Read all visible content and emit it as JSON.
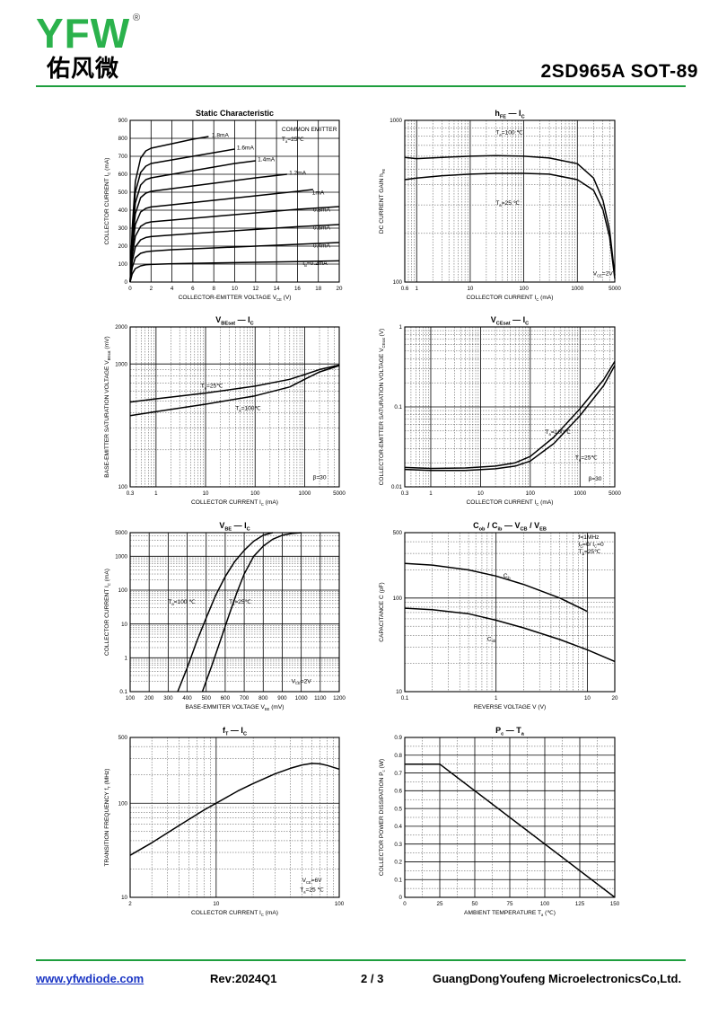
{
  "header": {
    "logo_letters": "YFW",
    "logo_chinese": "佑风微",
    "logo_registered": "®",
    "title": "2SD965A   SOT-89"
  },
  "footer": {
    "website": "www.yfwdiode.com",
    "revision": "Rev:2024Q1",
    "page": "2 / 3",
    "company": "GuangDongYoufeng MicroelectronicsCo,Ltd."
  },
  "colors": {
    "brand_green": "#2bb24c",
    "rule_green": "#1e9e3e",
    "link_blue": "#1a35c4"
  },
  "chart_data": [
    {
      "id": "static",
      "type": "line",
      "title": "Static Characteristic",
      "xlabel": "COLLECTOR-EMITTER VOLTAGE V_CE (V)",
      "ylabel": "COLLECTOR CURRENT I_C (mA)",
      "xscale": "linear",
      "yscale": "linear",
      "xlim": [
        0,
        20
      ],
      "ylim": [
        0,
        900
      ],
      "xticks": [
        0,
        2,
        4,
        6,
        8,
        10,
        12,
        14,
        16,
        18,
        20
      ],
      "yticks": [
        0,
        100,
        200,
        300,
        400,
        500,
        600,
        700,
        800,
        900
      ],
      "grid": "major",
      "annotations": [
        "COMMON EMITTER",
        "T_a=25℃"
      ],
      "series": [
        {
          "name": "1.8mA",
          "x": [
            0,
            0.2,
            0.5,
            1,
            1.5,
            2,
            4,
            6,
            7.5
          ],
          "y": [
            0,
            300,
            560,
            690,
            730,
            745,
            770,
            795,
            810
          ]
        },
        {
          "name": "1.6mA",
          "x": [
            0,
            0.2,
            0.5,
            1,
            1.5,
            2,
            4,
            6,
            8,
            10
          ],
          "y": [
            0,
            270,
            500,
            610,
            645,
            660,
            680,
            700,
            720,
            740
          ]
        },
        {
          "name": "1.4mA",
          "x": [
            0,
            0.2,
            0.5,
            1,
            1.5,
            2,
            4,
            6,
            8,
            10,
            12
          ],
          "y": [
            0,
            240,
            440,
            540,
            570,
            580,
            600,
            620,
            640,
            660,
            675
          ]
        },
        {
          "name": "1.2mA",
          "x": [
            0,
            0.2,
            0.5,
            1,
            1.5,
            2,
            4,
            8,
            12,
            15
          ],
          "y": [
            0,
            210,
            380,
            470,
            495,
            505,
            520,
            550,
            580,
            600
          ]
        },
        {
          "name": "1mA",
          "x": [
            0,
            0.2,
            0.5,
            1,
            1.5,
            2,
            4,
            8,
            12,
            16,
            17.5
          ],
          "y": [
            0,
            180,
            320,
            390,
            410,
            418,
            430,
            455,
            480,
            505,
            515
          ]
        },
        {
          "name": "0.8mA",
          "x": [
            0,
            0.2,
            0.5,
            1,
            1.5,
            2,
            4,
            8,
            12,
            16,
            20
          ],
          "y": [
            0,
            150,
            255,
            310,
            328,
            335,
            345,
            365,
            385,
            405,
            420
          ]
        },
        {
          "name": "0.6mA",
          "x": [
            0,
            0.2,
            0.5,
            1,
            1.5,
            2,
            4,
            8,
            12,
            16,
            20
          ],
          "y": [
            0,
            115,
            195,
            235,
            248,
            253,
            262,
            278,
            293,
            308,
            320
          ]
        },
        {
          "name": "0.4mA",
          "x": [
            0,
            0.2,
            0.5,
            1,
            1.5,
            2,
            4,
            8,
            12,
            16,
            20
          ],
          "y": [
            0,
            80,
            135,
            160,
            168,
            172,
            180,
            190,
            200,
            210,
            220
          ]
        },
        {
          "name": "I_B=0.2mA",
          "x": [
            0,
            0.2,
            0.5,
            1,
            1.5,
            2,
            4,
            8,
            12,
            16,
            20
          ],
          "y": [
            0,
            45,
            75,
            90,
            96,
            98,
            102,
            106,
            110,
            114,
            118
          ]
        }
      ]
    },
    {
      "id": "hfe",
      "type": "line",
      "title": "h_FE — I_C",
      "xlabel": "COLLECTOR CURRENT I_C (mA)",
      "ylabel": "DC CURRENT GAIN h_FE",
      "xscale": "log",
      "yscale": "log",
      "xlim": [
        0.6,
        5000
      ],
      "ylim": [
        100,
        1000
      ],
      "xticks": [
        0.6,
        1,
        10,
        100,
        1000,
        5000
      ],
      "yticks": [
        100,
        1000
      ],
      "grid": "log",
      "annotations": [
        "V_CE=2V"
      ],
      "series": [
        {
          "name": "T_a=100 ℃",
          "x": [
            0.6,
            1,
            3,
            10,
            30,
            100,
            300,
            1000,
            2000,
            3000,
            4000,
            5000
          ],
          "y": [
            590,
            580,
            590,
            600,
            605,
            600,
            585,
            540,
            440,
            320,
            210,
            110
          ]
        },
        {
          "name": "T_a=25 ℃",
          "x": [
            0.6,
            1,
            3,
            10,
            30,
            100,
            300,
            1000,
            2000,
            3000,
            4000,
            5000
          ],
          "y": [
            430,
            440,
            455,
            465,
            470,
            470,
            465,
            430,
            370,
            280,
            190,
            105
          ]
        }
      ]
    },
    {
      "id": "vbesat",
      "type": "line",
      "title": "V_BEsat — I_C",
      "xlabel": "COLLECTOR CURRENT I_C (mA)",
      "ylabel": "BASE-EMITTER SATURATION VOLTAGE V_BEsat (mV)",
      "xscale": "log",
      "yscale": "log",
      "xlim": [
        0.3,
        5000
      ],
      "ylim": [
        100,
        2000
      ],
      "xticks": [
        0.3,
        1,
        10,
        100,
        1000,
        5000
      ],
      "yticks": [
        100,
        1000,
        2000
      ],
      "grid": "log",
      "annotations": [
        "β=30"
      ],
      "series": [
        {
          "name": "T_a=25℃",
          "x": [
            0.3,
            1,
            10,
            100,
            500,
            1000,
            2000,
            5000
          ],
          "y": [
            490,
            520,
            580,
            660,
            750,
            820,
            900,
            980
          ]
        },
        {
          "name": "T_a=100℃",
          "x": [
            0.3,
            1,
            10,
            100,
            500,
            1000,
            2000,
            5000
          ],
          "y": [
            380,
            410,
            470,
            550,
            650,
            750,
            860,
            970
          ]
        }
      ]
    },
    {
      "id": "vcesat",
      "type": "line",
      "title": "V_CEsat — I_C",
      "xlabel": "COLLECTOR CURRENT I_C (mA)",
      "ylabel": "COLLECTOR-EMITTER SATURATION VOLTAGE V_CEsat (V)",
      "xscale": "log",
      "yscale": "log",
      "xlim": [
        0.3,
        5000
      ],
      "ylim": [
        0.01,
        1
      ],
      "xticks": [
        0.3,
        1,
        10,
        100,
        1000,
        5000
      ],
      "yticks": [
        0.01,
        0.1,
        1
      ],
      "grid": "log",
      "annotations": [
        "β=30"
      ],
      "series": [
        {
          "name": "T_a=100℃",
          "x": [
            0.3,
            1,
            5,
            20,
            50,
            100,
            300,
            1000,
            3000,
            5000
          ],
          "y": [
            0.0175,
            0.017,
            0.0172,
            0.0182,
            0.02,
            0.024,
            0.042,
            0.095,
            0.22,
            0.37
          ]
        },
        {
          "name": "T_a=25℃",
          "x": [
            0.3,
            1,
            5,
            20,
            50,
            100,
            300,
            1000,
            3000,
            5000
          ],
          "y": [
            0.0165,
            0.016,
            0.016,
            0.0168,
            0.0182,
            0.021,
            0.035,
            0.078,
            0.185,
            0.33
          ]
        }
      ]
    },
    {
      "id": "vbe",
      "type": "line",
      "title": "V_BE — I_C",
      "xlabel": "BASE-EMMITER VOLTAGE V_BE (mV)",
      "ylabel": "COLLECTOR CURRENT I_C (mA)",
      "xscale": "linear",
      "yscale": "log",
      "xlim": [
        100,
        1200
      ],
      "ylim": [
        0.1,
        5000
      ],
      "xticks": [
        100,
        200,
        300,
        400,
        500,
        600,
        700,
        800,
        900,
        1000,
        1100,
        1200
      ],
      "yticks": [
        0.1,
        1,
        10,
        100,
        1000,
        5000
      ],
      "grid": "log",
      "annotations": [
        "V_CE=2V"
      ],
      "series": [
        {
          "name": "T_a=100 ℃",
          "x": [
            350,
            400,
            450,
            500,
            550,
            600,
            650,
            700,
            750,
            800,
            850
          ],
          "y": [
            0.1,
            0.5,
            3,
            15,
            70,
            250,
            700,
            1500,
            2800,
            4200,
            5000
          ]
        },
        {
          "name": "T_a=25℃",
          "x": [
            480,
            530,
            580,
            620,
            660,
            700,
            750,
            800,
            850,
            900,
            950,
            1000
          ],
          "y": [
            0.1,
            0.6,
            4,
            18,
            80,
            300,
            1000,
            2000,
            3200,
            4200,
            4700,
            5000
          ]
        }
      ]
    },
    {
      "id": "cap",
      "type": "line",
      "title": "C_ob / C_ib — V_CB / V_EB",
      "xlabel": "REVERSE VOLTAGE V (V)",
      "ylabel": "CAPACITANCE C (pF)",
      "xscale": "log",
      "yscale": "log",
      "xlim": [
        0.1,
        20
      ],
      "ylim": [
        10,
        500
      ],
      "xticks": [
        0.1,
        1,
        10,
        20
      ],
      "yticks": [
        10,
        100,
        500
      ],
      "grid": "log",
      "annotations": [
        "f=1MHz",
        "I_E=0/ I_C=0",
        "T_a=25℃"
      ],
      "series": [
        {
          "name": "C_ib",
          "x": [
            0.1,
            0.2,
            0.5,
            1,
            2,
            5,
            10
          ],
          "y": [
            235,
            225,
            200,
            172,
            140,
            100,
            72
          ]
        },
        {
          "name": "C_ob",
          "x": [
            0.1,
            0.2,
            0.5,
            1,
            2,
            5,
            10,
            20
          ],
          "y": [
            78,
            75,
            68,
            58,
            48,
            36,
            28,
            21
          ]
        }
      ]
    },
    {
      "id": "ft",
      "type": "line",
      "title": "f_T — I_C",
      "xlabel": "COLLECTOR CURRENT I_C (mA)",
      "ylabel": "TRANSITION FREQUENCY f_T (MHz)",
      "xscale": "log",
      "yscale": "log",
      "xlim": [
        2,
        100
      ],
      "ylim": [
        10,
        500
      ],
      "xticks": [
        2,
        10,
        100
      ],
      "yticks": [
        10,
        100,
        500
      ],
      "grid": "log",
      "annotations": [
        "V_CE=6V",
        "T_a=25 ℃"
      ],
      "series": [
        {
          "name": "f_T",
          "x": [
            2,
            3,
            5,
            8,
            10,
            15,
            20,
            30,
            40,
            50,
            60,
            70,
            80,
            100
          ],
          "y": [
            28,
            38,
            58,
            85,
            100,
            135,
            162,
            205,
            235,
            255,
            265,
            262,
            252,
            230
          ]
        }
      ]
    },
    {
      "id": "pc",
      "type": "line",
      "title": "P_c — T_a",
      "xlabel": "AMBIENT TEMPERATURE T_a (℃)",
      "ylabel": "COLLECTOR POWER DISSIPATION P_c (W)",
      "xscale": "linear",
      "yscale": "linear",
      "xlim": [
        0,
        150
      ],
      "ylim": [
        0,
        0.9
      ],
      "xticks": [
        0,
        25,
        50,
        75,
        100,
        125,
        150
      ],
      "yticks": [
        0.0,
        0.1,
        0.2,
        0.3,
        0.4,
        0.5,
        0.6,
        0.7,
        0.8,
        0.9
      ],
      "grid": "major+minor",
      "series": [
        {
          "name": "P_c",
          "x": [
            0,
            25,
            150
          ],
          "y": [
            0.75,
            0.75,
            0
          ]
        }
      ]
    }
  ]
}
